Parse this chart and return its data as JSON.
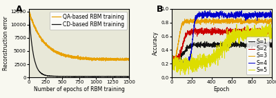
{
  "panel_A": {
    "title": "A",
    "xlabel": "Number of epochs of RBM training",
    "ylabel": "Reconstruction error",
    "xlim": [
      0,
      1500
    ],
    "ylim": [
      0,
      13000
    ],
    "yticks": [
      0,
      2500,
      5000,
      7500,
      10000,
      12500
    ],
    "xticks": [
      0,
      250,
      500,
      750,
      1000,
      1250,
      1500
    ],
    "qa_color": "#E8A000",
    "cd_color": "#111111",
    "qa_label": "QA-based RBM training",
    "cd_label": "CD-based RBM training"
  },
  "panel_B": {
    "title": "B",
    "xlabel": "Epoch",
    "ylabel": "Accuracy",
    "xlim": [
      0,
      1000
    ],
    "ylim": [
      0,
      1
    ],
    "yticks": [
      0,
      0.2,
      0.4,
      0.6,
      0.8,
      1.0
    ],
    "xticks": [
      0,
      200,
      400,
      600,
      800,
      1000
    ],
    "colors": {
      "S1": "#111111",
      "S2": "#CC0000",
      "S3": "#E8A000",
      "S4": "#0000CC",
      "S5": "#DDDD00"
    },
    "S1_plateau": 0.475,
    "S2_plateau": 0.67,
    "S3_plateau": 0.82,
    "S4_plateau": 0.91,
    "S5_plateau": 0.655,
    "S1_rise": 130,
    "S2_rise": 110,
    "S3_rise": 70,
    "S4_rise": 210,
    "S5_rise": 500
  },
  "ax_facecolor": "#E8E8D8",
  "fig_facecolor": "#F8F8F0",
  "fontsize": 7,
  "legend_fontsize": 5.5
}
